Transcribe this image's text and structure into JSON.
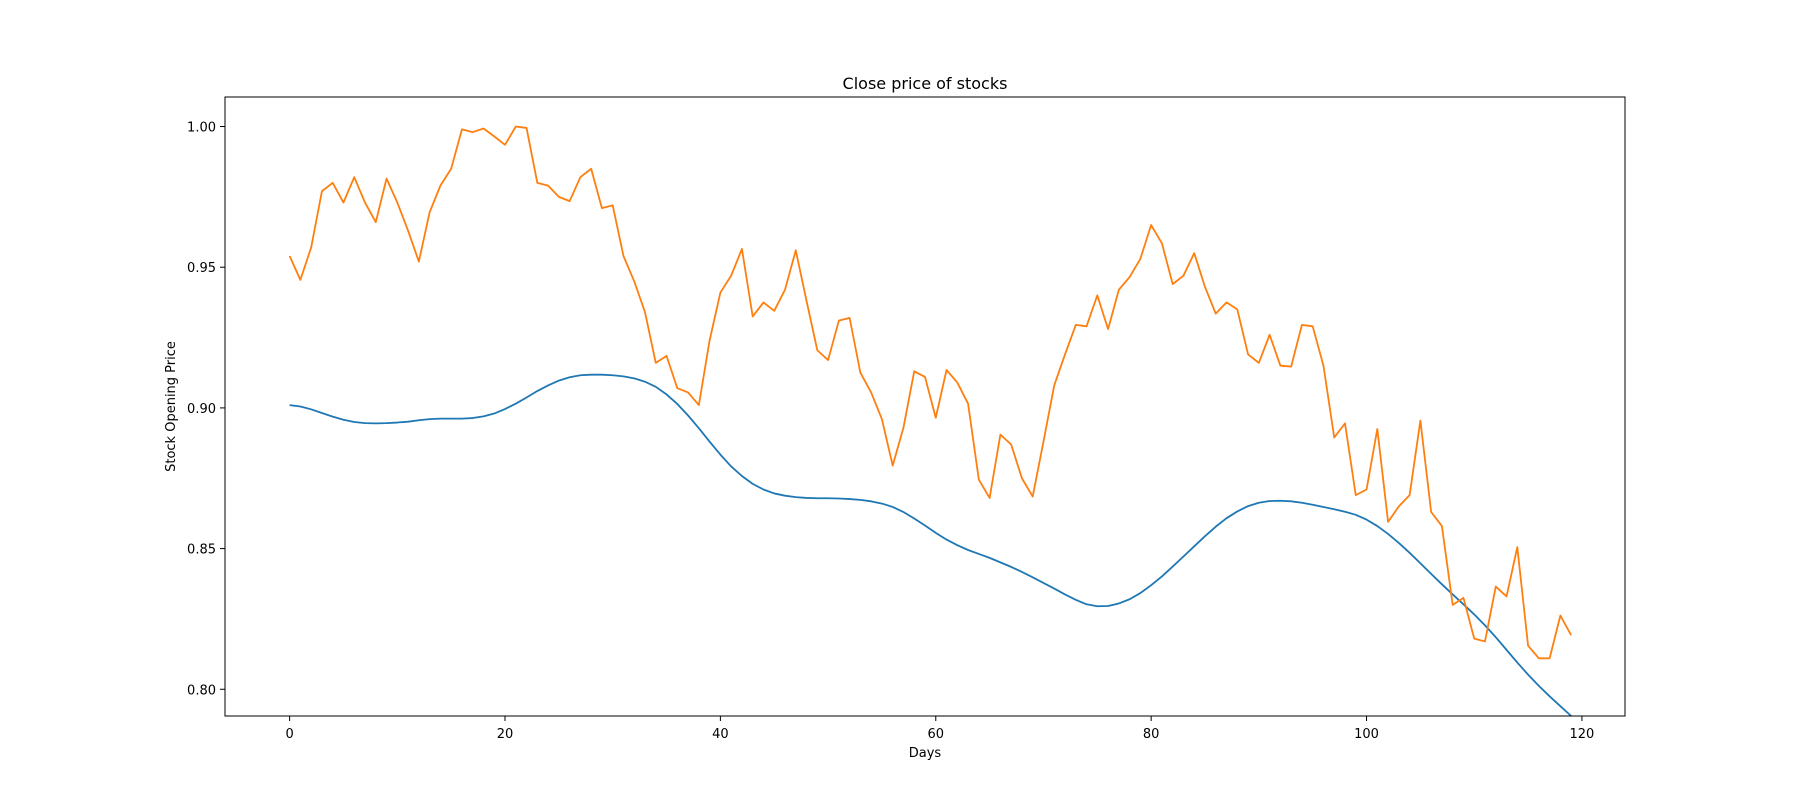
{
  "chart_data": {
    "type": "line",
    "title": "Close price of stocks",
    "xlabel": "Days",
    "ylabel": "Stock Opening Price",
    "xlim": [
      -6,
      124
    ],
    "ylim": [
      0.7905,
      1.0105
    ],
    "xticks": [
      0,
      20,
      40,
      60,
      80,
      100,
      120
    ],
    "xtick_labels": [
      "0",
      "20",
      "40",
      "60",
      "80",
      "100",
      "120"
    ],
    "yticks": [
      0.8,
      0.85,
      0.9,
      0.95,
      1.0
    ],
    "ytick_labels": [
      "0.80",
      "0.85",
      "0.90",
      "0.95",
      "1.00"
    ],
    "grid": false,
    "series": [
      {
        "color": "#1f77b4",
        "x_start": 0,
        "values": [
          0.901,
          0.9005,
          0.8995,
          0.8982,
          0.8969,
          0.8958,
          0.895,
          0.8946,
          0.8945,
          0.8946,
          0.8948,
          0.8951,
          0.8956,
          0.896,
          0.8962,
          0.8962,
          0.8962,
          0.8964,
          0.897,
          0.898,
          0.8996,
          0.9015,
          0.9037,
          0.906,
          0.908,
          0.9097,
          0.9109,
          0.9116,
          0.9118,
          0.9118,
          0.9116,
          0.9112,
          0.9105,
          0.9093,
          0.9075,
          0.9048,
          0.9014,
          0.8973,
          0.8928,
          0.888,
          0.8834,
          0.8792,
          0.8758,
          0.873,
          0.871,
          0.8696,
          0.8688,
          0.8683,
          0.868,
          0.8679,
          0.8679,
          0.8678,
          0.8676,
          0.8673,
          0.8668,
          0.866,
          0.8648,
          0.863,
          0.8607,
          0.8582,
          0.8556,
          0.8532,
          0.8512,
          0.8495,
          0.8481,
          0.8467,
          0.8451,
          0.8435,
          0.8417,
          0.8398,
          0.8378,
          0.8358,
          0.8337,
          0.8318,
          0.8302,
          0.8295,
          0.8296,
          0.8305,
          0.832,
          0.8342,
          0.837,
          0.8401,
          0.8436,
          0.8472,
          0.8508,
          0.8544,
          0.8578,
          0.8608,
          0.8632,
          0.8651,
          0.8663,
          0.8669,
          0.867,
          0.8668,
          0.8663,
          0.8656,
          0.8648,
          0.864,
          0.8631,
          0.862,
          0.8603,
          0.858,
          0.8552,
          0.852,
          0.8485,
          0.8448,
          0.841,
          0.8373,
          0.8337,
          0.8302,
          0.8266,
          0.8227,
          0.8185,
          0.814,
          0.8095,
          0.8052,
          0.8012,
          0.7975,
          0.794,
          0.7905
        ]
      },
      {
        "color": "#ff7f0e",
        "x_start": 0,
        "values": [
          0.954,
          0.9455,
          0.957,
          0.977,
          0.98,
          0.973,
          0.982,
          0.973,
          0.966,
          0.9815,
          0.973,
          0.963,
          0.952,
          0.9695,
          0.979,
          0.985,
          0.999,
          0.998,
          0.9993,
          0.9965,
          0.9935,
          1.0,
          0.9995,
          0.98,
          0.979,
          0.975,
          0.9735,
          0.982,
          0.985,
          0.971,
          0.972,
          0.954,
          0.945,
          0.934,
          0.916,
          0.9185,
          0.907,
          0.9055,
          0.901,
          0.924,
          0.941,
          0.947,
          0.9565,
          0.9325,
          0.9375,
          0.9345,
          0.942,
          0.956,
          0.938,
          0.9205,
          0.917,
          0.931,
          0.932,
          0.9125,
          0.9055,
          0.896,
          0.8795,
          0.893,
          0.913,
          0.911,
          0.8965,
          0.9135,
          0.909,
          0.9015,
          0.8745,
          0.868,
          0.8905,
          0.887,
          0.875,
          0.8685,
          0.888,
          0.908,
          0.919,
          0.9295,
          0.929,
          0.94,
          0.928,
          0.942,
          0.9465,
          0.953,
          0.965,
          0.9585,
          0.944,
          0.947,
          0.955,
          0.943,
          0.9335,
          0.9375,
          0.935,
          0.919,
          0.916,
          0.926,
          0.915,
          0.9147,
          0.9295,
          0.929,
          0.915,
          0.8895,
          0.8945,
          0.869,
          0.871,
          0.8925,
          0.8595,
          0.865,
          0.869,
          0.8955,
          0.863,
          0.858,
          0.83,
          0.8325,
          0.818,
          0.817,
          0.8365,
          0.833,
          0.8505,
          0.8155,
          0.811,
          0.811,
          0.8262,
          0.8192
        ]
      }
    ]
  }
}
